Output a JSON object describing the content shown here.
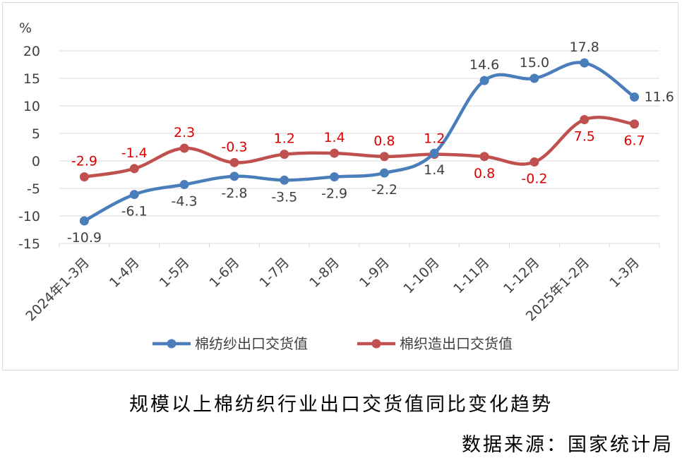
{
  "chart_data": {
    "type": "line",
    "unit_label": "%",
    "categories": [
      "2024年1-3月",
      "1-4月",
      "1-5月",
      "1-6月",
      "1-7月",
      "1-8月",
      "1-9月",
      "1-10月",
      "1-11月",
      "1-12月",
      "2025年1-2月",
      "1-3月"
    ],
    "ylim": [
      -15,
      20
    ],
    "yticks": [
      "20",
      "15",
      "10",
      "5",
      "0",
      "-5",
      "-10",
      "-15"
    ],
    "grid": true,
    "legend_position": "bottom",
    "series": [
      {
        "name": "棉纺纱出口交货值",
        "color": "#4a7ebb",
        "label_color": "#404040",
        "values": [
          -10.9,
          -6.1,
          -4.3,
          -2.8,
          -3.5,
          -2.9,
          -2.2,
          1.4,
          14.6,
          15.0,
          17.8,
          11.6
        ],
        "labels": [
          "-10.9",
          "-6.1",
          "-4.3",
          "-2.8",
          "-3.5",
          "-2.9",
          "-2.2",
          "1.4",
          "14.6",
          "15.0",
          "17.8",
          "11.6"
        ]
      },
      {
        "name": "棉织造出口交货值",
        "color": "#c0504d",
        "label_color": "#e00000",
        "values": [
          -2.9,
          -1.4,
          2.3,
          -0.3,
          1.2,
          1.4,
          0.8,
          1.2,
          0.8,
          -0.2,
          7.5,
          6.7
        ],
        "labels": [
          "-2.9",
          "-1.4",
          "2.3",
          "-0.3",
          "1.2",
          "1.4",
          "0.8",
          "1.2",
          "0.8",
          "-0.2",
          "7.5",
          "6.7"
        ]
      }
    ]
  },
  "caption": "规模以上棉纺织行业出口交货值同比变化趋势",
  "source": "数据来源：国家统计局"
}
